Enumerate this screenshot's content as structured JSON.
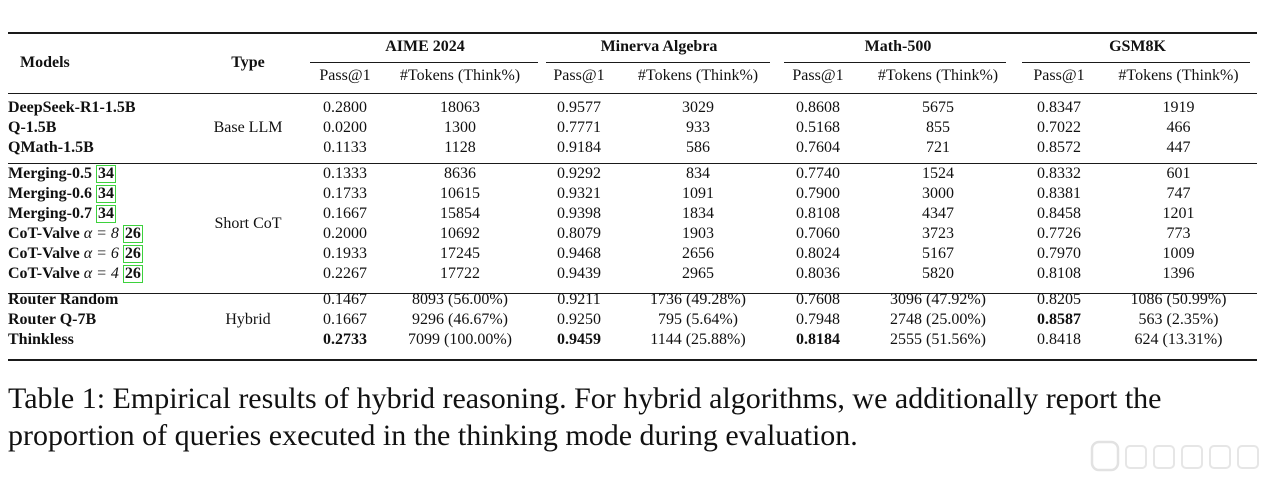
{
  "table": {
    "headers": {
      "models": "Models",
      "type": "Type",
      "benchmarks": [
        "AIME 2024",
        "Minerva Algebra",
        "Math-500",
        "GSM8K"
      ],
      "pass": "Pass@1",
      "tokens": "#Tokens (Think%)"
    },
    "groups": [
      {
        "type": "Base LLM",
        "rows": [
          {
            "model": "DeepSeek-R1-1.5B",
            "cells": [
              "0.2800",
              "18063",
              "0.9577",
              "3029",
              "0.8608",
              "5675",
              "0.8347",
              "1919"
            ]
          },
          {
            "model": "Q-1.5B",
            "cells": [
              "0.0200",
              "1300",
              "0.7771",
              "933",
              "0.5168",
              "855",
              "0.7022",
              "466"
            ]
          },
          {
            "model": "QMath-1.5B",
            "cells": [
              "0.1133",
              "1128",
              "0.9184",
              "586",
              "0.7604",
              "721",
              "0.8572",
              "447"
            ]
          }
        ]
      },
      {
        "type": "Short CoT",
        "rows": [
          {
            "model": "Merging-0.5",
            "cite": "34",
            "cells": [
              "0.1333",
              "8636",
              "0.9292",
              "834",
              "0.7740",
              "1524",
              "0.8332",
              "601"
            ]
          },
          {
            "model": "Merging-0.6",
            "cite": "34",
            "cells": [
              "0.1733",
              "10615",
              "0.9321",
              "1091",
              "0.7900",
              "3000",
              "0.8381",
              "747"
            ]
          },
          {
            "model": "Merging-0.7",
            "cite": "34",
            "cells": [
              "0.1667",
              "15854",
              "0.9398",
              "1834",
              "0.8108",
              "4347",
              "0.8458",
              "1201"
            ]
          },
          {
            "model": "CoT-Valve",
            "alpha": "α = 8",
            "cite": "26",
            "cells": [
              "0.2000",
              "10692",
              "0.8079",
              "1903",
              "0.7060",
              "3723",
              "0.7726",
              "773"
            ]
          },
          {
            "model": "CoT-Valve",
            "alpha": "α = 6",
            "cite": "26",
            "cells": [
              "0.1933",
              "17245",
              "0.9468",
              "2656",
              "0.8024",
              "5167",
              "0.7970",
              "1009"
            ]
          },
          {
            "model": "CoT-Valve",
            "alpha": "α = 4",
            "cite": "26",
            "cells": [
              "0.2267",
              "17722",
              "0.9439",
              "2965",
              "0.8036",
              "5820",
              "0.8108",
              "1396"
            ]
          }
        ]
      },
      {
        "type": "Hybrid",
        "rows": [
          {
            "model": "Router Random",
            "cells": [
              "0.1467",
              "8093 (56.00%)",
              "0.9211",
              "1736 (49.28%)",
              "0.7608",
              "3096 (47.92%)",
              "0.8205",
              "1086 (50.99%)"
            ]
          },
          {
            "model": "Router Q-7B",
            "cells": [
              "0.1667",
              "9296 (46.67%)",
              "0.9250",
              "795 (5.64%)",
              "0.7948",
              "2748 (25.00%)",
              "0.8587",
              "563 (2.35%)"
            ],
            "bold": [
              6
            ]
          },
          {
            "model": "Thinkless",
            "cells": [
              "0.2733",
              "7099 (100.00%)",
              "0.9459",
              "1144 (25.88%)",
              "0.8184",
              "2555 (51.56%)",
              "0.8418",
              "624 (13.31%)"
            ],
            "bold": [
              0,
              2,
              4
            ]
          }
        ]
      }
    ]
  },
  "caption": "Table 1: Empirical results of hybrid reasoning. For hybrid algorithms, we additionally report the proportion of queries executed in the thinking mode during evaluation.",
  "colors": {
    "cite_border": "#3dd23d",
    "rule": "#1a1a1a"
  },
  "watermark_icon": "platform-watermark-logo"
}
